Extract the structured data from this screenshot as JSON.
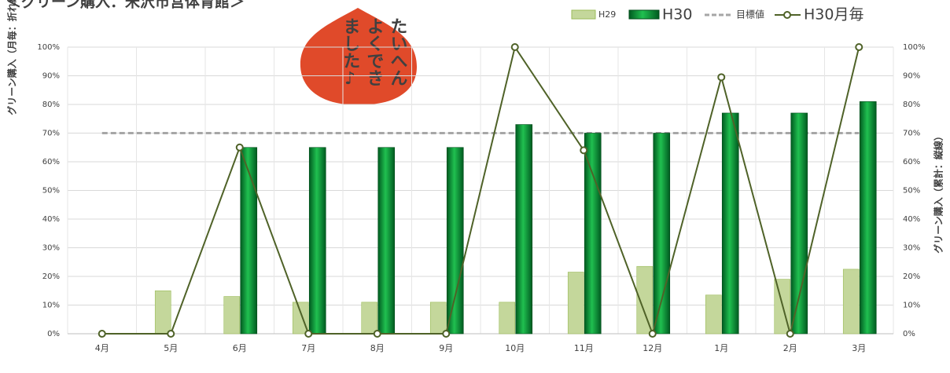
{
  "chart_data": {
    "type": "bar",
    "title": "＜グリーン購入：米沢市営体育館＞",
    "stamp": [
      "たいへん",
      "よくでき",
      "ました♪"
    ],
    "y_label": "グリーン購入（月毎：折れ線）",
    "y2_label": "グリーン購入（累計：縦線）",
    "categories": [
      "4月",
      "5月",
      "6月",
      "7月",
      "8月",
      "9月",
      "10月",
      "11月",
      "12月",
      "1月",
      "2月",
      "3月"
    ],
    "series": [
      {
        "name": "H29",
        "color": "#c4d79b",
        "axis": "y2",
        "values": [
          0,
          15,
          13,
          11,
          11,
          11,
          11,
          21.5,
          23.5,
          13.5,
          19,
          22.5
        ]
      },
      {
        "name": "H30",
        "color": "#00a040",
        "axis": "y2",
        "values": [
          0,
          0,
          65,
          65,
          65,
          65,
          73,
          70,
          70,
          77,
          77,
          81
        ]
      },
      {
        "name": "H30月毎",
        "color": "#4f6228",
        "type": "line",
        "values": [
          0,
          0,
          65,
          0,
          0,
          0,
          100,
          64,
          0,
          89.5,
          0,
          100
        ]
      }
    ],
    "target": {
      "name": "目標値",
      "value": 70,
      "color": "#a6a6a6"
    },
    "ylim": [
      0,
      100
    ],
    "yticks": [
      {
        "value": 0,
        "label": "0%"
      },
      {
        "value": 10,
        "label": "10%"
      },
      {
        "value": 20,
        "label": "20%"
      },
      {
        "value": 30,
        "label": "30%"
      },
      {
        "value": 40,
        "label": "40%"
      },
      {
        "value": 50,
        "label": "50%"
      },
      {
        "value": 60,
        "label": "60%"
      },
      {
        "value": 70,
        "label": "70%"
      },
      {
        "value": 80,
        "label": "80%"
      },
      {
        "value": 90,
        "label": "90%"
      },
      {
        "value": 100,
        "label": "100%"
      }
    ],
    "y2lim": [
      0,
      100
    ],
    "y2ticks": [
      {
        "value": 0,
        "label": "0%"
      },
      {
        "value": 10,
        "label": "10%"
      },
      {
        "value": 20,
        "label": "20%"
      },
      {
        "value": 30,
        "label": "30%"
      },
      {
        "value": 40,
        "label": "40%"
      },
      {
        "value": 50,
        "label": "50%"
      },
      {
        "value": 60,
        "label": "60%"
      },
      {
        "value": 70,
        "label": "70%"
      },
      {
        "value": 80,
        "label": "80%"
      },
      {
        "value": 90,
        "label": "90%"
      },
      {
        "value": 100,
        "label": "100%"
      }
    ],
    "grid": true
  }
}
